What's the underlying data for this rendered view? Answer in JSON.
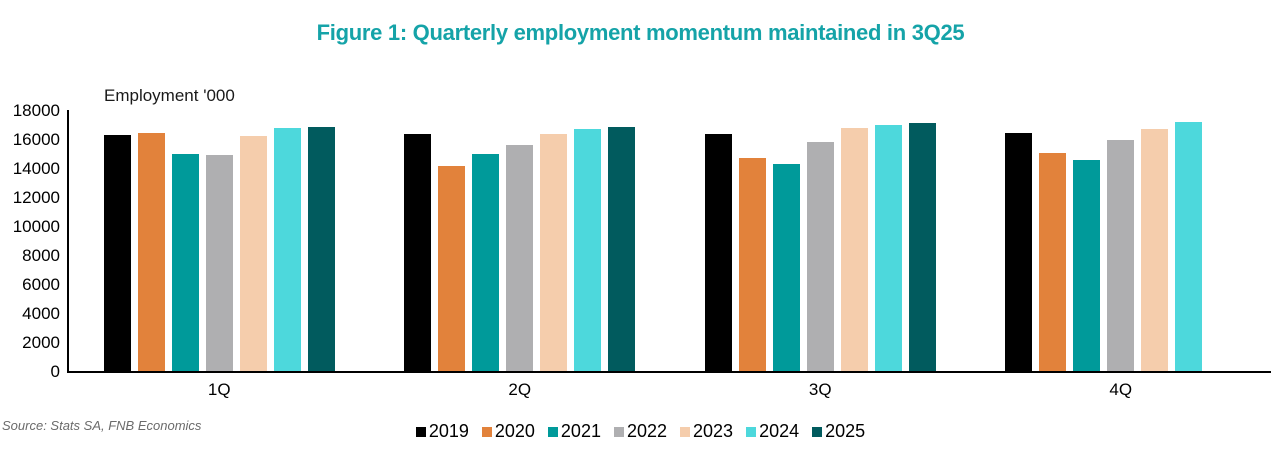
{
  "figure": {
    "title": "Figure 1: Quarterly employment momentum maintained in 3Q25",
    "title_color": "#15A3A8",
    "source": "Source: Stats SA, FNB Economics"
  },
  "chart_data": {
    "type": "bar",
    "title": "Figure 1: Quarterly employment momentum maintained in 3Q25",
    "axis_label": "Employment '000",
    "xlabel": "",
    "ylabel": "Employment '000",
    "categories": [
      "1Q",
      "2Q",
      "3Q",
      "4Q"
    ],
    "series": [
      {
        "name": "2019",
        "color": "#000000",
        "values": [
          16300,
          16320,
          16380,
          16420
        ]
      },
      {
        "name": "2020",
        "color": "#E2823B",
        "values": [
          16400,
          14150,
          14690,
          15020
        ]
      },
      {
        "name": "2021",
        "color": "#009A9A",
        "values": [
          15000,
          14940,
          14280,
          14540
        ]
      },
      {
        "name": "2022",
        "color": "#AFAFB1",
        "values": [
          14900,
          15560,
          15780,
          15930
        ]
      },
      {
        "name": "2023",
        "color": "#F5CDAC",
        "values": [
          16200,
          16350,
          16750,
          16720
        ]
      },
      {
        "name": "2024",
        "color": "#4DD8DC",
        "values": [
          16780,
          16700,
          17000,
          17150
        ]
      },
      {
        "name": "2025",
        "color": "#015B5E",
        "values": [
          16850,
          16840,
          17120,
          null
        ]
      }
    ],
    "ylim": [
      0,
      18000
    ],
    "ytick_step": 2000,
    "grid": false,
    "legend_position": "bottom"
  }
}
